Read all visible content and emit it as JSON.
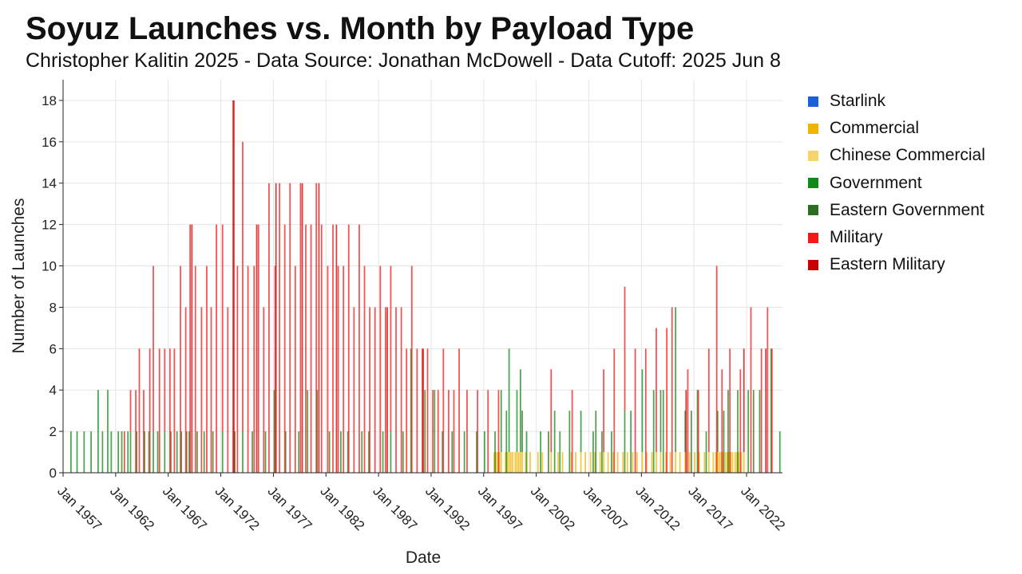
{
  "chart_data": {
    "type": "bar",
    "stacked": true,
    "title": "Soyuz Launches vs. Month by Payload Type",
    "subtitle": "Christopher Kalitin 2025 - Data Source: Jonathan McDowell - Data Cutoff: 2025 Jun 8",
    "xlabel": "Date",
    "ylabel": "Number of Launches",
    "x_range": [
      "1957-01",
      "2025-06"
    ],
    "ylim": [
      0,
      19
    ],
    "y_ticks": [
      0,
      2,
      4,
      6,
      8,
      10,
      12,
      14,
      16,
      18
    ],
    "x_ticks": [
      "Jan 1957",
      "Jan 1962",
      "Jan 1967",
      "Jan 1972",
      "Jan 1977",
      "Jan 1982",
      "Jan 1987",
      "Jan 1992",
      "Jan 1997",
      "Jan 2002",
      "Jan 2007",
      "Jan 2012",
      "Jan 2017",
      "Jan 2022"
    ],
    "grid": true,
    "legend_position": "right",
    "series": [
      {
        "name": "Starlink",
        "color": "#1a5fe0",
        "values": []
      },
      {
        "name": "Commercial",
        "color": "#f0b400",
        "values": [
          [
            "1998-01",
            1
          ],
          [
            "1998-03",
            1
          ],
          [
            "1998-05",
            1
          ],
          [
            "1998-07",
            1
          ],
          [
            "1998-09",
            1
          ],
          [
            "1999-02",
            1
          ],
          [
            "1999-04",
            1
          ],
          [
            "1999-06",
            1
          ],
          [
            "1999-08",
            1
          ],
          [
            "1999-10",
            1
          ],
          [
            "2000-01",
            1
          ],
          [
            "2000-03",
            1
          ],
          [
            "2000-05",
            1
          ],
          [
            "2000-07",
            1
          ],
          [
            "2000-09",
            1
          ],
          [
            "2001-01",
            1
          ],
          [
            "2001-06",
            1
          ],
          [
            "2002-03",
            1
          ],
          [
            "2002-08",
            1
          ],
          [
            "2003-06",
            1
          ],
          [
            "2004-02",
            1
          ],
          [
            "2004-07",
            1
          ],
          [
            "2005-05",
            1
          ],
          [
            "2005-10",
            1
          ],
          [
            "2006-04",
            1
          ],
          [
            "2006-09",
            1
          ],
          [
            "2007-03",
            1
          ],
          [
            "2007-08",
            1
          ],
          [
            "2008-02",
            1
          ],
          [
            "2008-06",
            1
          ],
          [
            "2008-11",
            1
          ],
          [
            "2009-05",
            1
          ],
          [
            "2009-10",
            1
          ],
          [
            "2010-04",
            1
          ],
          [
            "2010-09",
            1
          ],
          [
            "2011-03",
            1
          ],
          [
            "2011-08",
            1
          ],
          [
            "2012-02",
            1
          ],
          [
            "2012-07",
            1
          ],
          [
            "2013-01",
            1
          ],
          [
            "2013-06",
            1
          ],
          [
            "2013-11",
            1
          ],
          [
            "2014-05",
            1
          ],
          [
            "2014-10",
            1
          ],
          [
            "2015-04",
            1
          ],
          [
            "2015-09",
            1
          ],
          [
            "2016-03",
            1
          ],
          [
            "2016-08",
            1
          ],
          [
            "2017-02",
            1
          ],
          [
            "2017-07",
            1
          ],
          [
            "2018-01",
            1
          ],
          [
            "2018-06",
            1
          ],
          [
            "2018-11",
            1
          ],
          [
            "2019-02",
            1
          ],
          [
            "2019-04",
            1
          ],
          [
            "2019-06",
            1
          ],
          [
            "2019-08",
            1
          ],
          [
            "2019-10",
            1
          ],
          [
            "2020-01",
            1
          ],
          [
            "2020-03",
            1
          ],
          [
            "2020-05",
            1
          ],
          [
            "2020-07",
            1
          ],
          [
            "2020-09",
            1
          ],
          [
            "2020-12",
            1
          ],
          [
            "2021-02",
            1
          ],
          [
            "2021-04",
            1
          ],
          [
            "2021-07",
            1
          ],
          [
            "2021-10",
            1
          ]
        ]
      },
      {
        "name": "Chinese Commercial",
        "color": "#f5d46a",
        "values": []
      },
      {
        "name": "Government",
        "color": "#0e8a16",
        "values": [
          [
            "1957-10",
            2
          ],
          [
            "1958-05",
            2
          ],
          [
            "1959-01",
            2
          ],
          [
            "1959-09",
            2
          ],
          [
            "1960-05",
            4
          ],
          [
            "1960-10",
            2
          ],
          [
            "1961-04",
            4
          ],
          [
            "1961-08",
            2
          ],
          [
            "1962-04",
            2
          ],
          [
            "1962-08",
            2
          ],
          [
            "1963-03",
            2
          ],
          [
            "1963-06",
            2
          ],
          [
            "1964-01",
            2
          ],
          [
            "1964-10",
            2
          ],
          [
            "1965-03",
            2
          ],
          [
            "1965-08",
            2
          ],
          [
            "1966-01",
            2
          ],
          [
            "1966-09",
            2
          ],
          [
            "1967-04",
            2
          ],
          [
            "1967-11",
            2
          ],
          [
            "1968-04",
            2
          ],
          [
            "1968-10",
            2
          ],
          [
            "1969-01",
            2
          ],
          [
            "1969-10",
            2
          ],
          [
            "1970-06",
            2
          ],
          [
            "1971-04",
            2
          ],
          [
            "1972-03",
            2
          ],
          [
            "1973-05",
            2
          ],
          [
            "1974-02",
            2
          ],
          [
            "1975-01",
            2
          ],
          [
            "1976-04",
            2
          ],
          [
            "1977-02",
            4
          ],
          [
            "1978-03",
            2
          ],
          [
            "1979-06",
            2
          ],
          [
            "1980-04",
            4
          ],
          [
            "1981-03",
            4
          ],
          [
            "1982-05",
            2
          ],
          [
            "1983-06",
            2
          ],
          [
            "1984-02",
            2
          ],
          [
            "1985-06",
            2
          ],
          [
            "1986-02",
            2
          ],
          [
            "1987-06",
            2
          ],
          [
            "1988-03",
            2
          ],
          [
            "1989-05",
            2
          ],
          [
            "1990-02",
            6
          ],
          [
            "1991-06",
            4
          ],
          [
            "1992-05",
            4
          ],
          [
            "1993-02",
            2
          ],
          [
            "1994-01",
            2
          ],
          [
            "1995-03",
            2
          ],
          [
            "1996-05",
            2
          ],
          [
            "1997-02",
            2
          ],
          [
            "1998-02",
            2
          ],
          [
            "1998-09",
            3
          ],
          [
            "1999-03",
            3
          ],
          [
            "1999-06",
            5
          ],
          [
            "2000-03",
            3
          ],
          [
            "2000-07",
            4
          ],
          [
            "2001-02",
            2
          ],
          [
            "2002-06",
            2
          ],
          [
            "2003-10",
            3
          ],
          [
            "2004-04",
            2
          ],
          [
            "2005-03",
            3
          ],
          [
            "2006-04",
            2
          ],
          [
            "2007-06",
            2
          ],
          [
            "2008-04",
            2
          ],
          [
            "2009-03",
            2
          ],
          [
            "2010-06",
            3
          ],
          [
            "2011-01",
            3
          ],
          [
            "2012-02",
            4
          ],
          [
            "2013-03",
            4
          ],
          [
            "2014-02",
            4
          ],
          [
            "2015-04",
            7
          ],
          [
            "2016-03",
            2
          ],
          [
            "2017-05",
            4
          ],
          [
            "2018-03",
            2
          ],
          [
            "2019-04",
            2
          ],
          [
            "2020-04",
            4
          ],
          [
            "2021-03",
            4
          ],
          [
            "2022-03",
            4
          ],
          [
            "2023-04",
            4
          ],
          [
            "2024-05",
            6
          ],
          [
            "2025-03",
            2
          ]
        ]
      },
      {
        "name": "Eastern Government",
        "color": "#2a6f1f",
        "values": [
          [
            "2000-09",
            2
          ],
          [
            "2003-03",
            2
          ],
          [
            "2007-09",
            3
          ],
          [
            "2013-11",
            3
          ],
          [
            "2016-10",
            3
          ],
          [
            "2019-11",
            3
          ],
          [
            "2022-09",
            4
          ]
        ]
      },
      {
        "name": "Military",
        "color": "#f51616",
        "values": [
          [
            "1962-11",
            2
          ],
          [
            "1963-06",
            2
          ],
          [
            "1963-12",
            4
          ],
          [
            "1964-04",
            6
          ],
          [
            "1964-09",
            4
          ],
          [
            "1965-04",
            6
          ],
          [
            "1965-08",
            8
          ],
          [
            "1966-03",
            6
          ],
          [
            "1966-09",
            4
          ],
          [
            "1967-03",
            6
          ],
          [
            "1967-08",
            6
          ],
          [
            "1968-03",
            10
          ],
          [
            "1968-09",
            8
          ],
          [
            "1969-02",
            12
          ],
          [
            "1969-08",
            10
          ],
          [
            "1970-03",
            8
          ],
          [
            "1970-09",
            10
          ],
          [
            "1971-02",
            8
          ],
          [
            "1971-08",
            12
          ],
          [
            "1972-03",
            10
          ],
          [
            "1972-09",
            8
          ],
          [
            "1973-03",
            18
          ],
          [
            "1973-08",
            10
          ],
          [
            "1974-02",
            14
          ],
          [
            "1974-08",
            10
          ],
          [
            "1975-03",
            10
          ],
          [
            "1975-08",
            12
          ],
          [
            "1976-02",
            8
          ],
          [
            "1976-08",
            14
          ],
          [
            "1977-03",
            10
          ],
          [
            "1977-08",
            14
          ],
          [
            "1978-02",
            12
          ],
          [
            "1978-08",
            14
          ],
          [
            "1979-02",
            10
          ],
          [
            "1979-08",
            14
          ],
          [
            "1980-02",
            12
          ],
          [
            "1980-08",
            12
          ],
          [
            "1981-02",
            14
          ],
          [
            "1981-08",
            12
          ],
          [
            "1982-03",
            10
          ],
          [
            "1982-09",
            12
          ],
          [
            "1983-03",
            10
          ],
          [
            "1983-09",
            10
          ],
          [
            "1984-03",
            12
          ],
          [
            "1984-09",
            8
          ],
          [
            "1985-03",
            12
          ],
          [
            "1985-09",
            10
          ],
          [
            "1986-03",
            8
          ],
          [
            "1986-09",
            8
          ],
          [
            "1987-03",
            10
          ],
          [
            "1987-09",
            8
          ],
          [
            "1988-03",
            8
          ],
          [
            "1988-09",
            8
          ],
          [
            "1989-03",
            8
          ],
          [
            "1989-09",
            6
          ],
          [
            "1990-03",
            10
          ],
          [
            "1990-09",
            6
          ],
          [
            "1991-03",
            6
          ],
          [
            "1991-09",
            6
          ],
          [
            "1992-03",
            4
          ],
          [
            "1992-09",
            4
          ],
          [
            "1993-03",
            6
          ],
          [
            "1993-09",
            4
          ],
          [
            "1994-03",
            4
          ],
          [
            "1994-09",
            6
          ],
          [
            "1995-06",
            4
          ],
          [
            "1996-06",
            4
          ],
          [
            "1997-06",
            4
          ],
          [
            "1998-06",
            4
          ],
          [
            "2003-06",
            4
          ],
          [
            "2005-06",
            4
          ],
          [
            "2008-06",
            4
          ],
          [
            "2009-06",
            6
          ],
          [
            "2010-06",
            6
          ],
          [
            "2011-06",
            6
          ],
          [
            "2012-06",
            6
          ],
          [
            "2013-06",
            6
          ],
          [
            "2014-06",
            7
          ],
          [
            "2014-12",
            8
          ],
          [
            "2016-06",
            5
          ],
          [
            "2017-06",
            4
          ],
          [
            "2018-06",
            5
          ],
          [
            "2019-03",
            10
          ],
          [
            "2019-09",
            5
          ],
          [
            "2020-06",
            6
          ],
          [
            "2021-06",
            5
          ],
          [
            "2022-06",
            8
          ],
          [
            "2023-06",
            6
          ],
          [
            "2024-01",
            8
          ],
          [
            "2024-06",
            6
          ]
        ]
      },
      {
        "name": "Eastern Military",
        "color": "#c80000",
        "values": [
          [
            "1969-04",
            12
          ],
          [
            "1973-04",
            18
          ],
          [
            "1975-06",
            12
          ],
          [
            "1977-04",
            14
          ],
          [
            "1979-10",
            14
          ],
          [
            "1981-05",
            14
          ],
          [
            "1983-01",
            12
          ],
          [
            "1987-11",
            8
          ],
          [
            "1991-04",
            6
          ],
          [
            "2016-04",
            4
          ],
          [
            "2021-10",
            5
          ],
          [
            "2023-11",
            6
          ]
        ]
      }
    ]
  }
}
